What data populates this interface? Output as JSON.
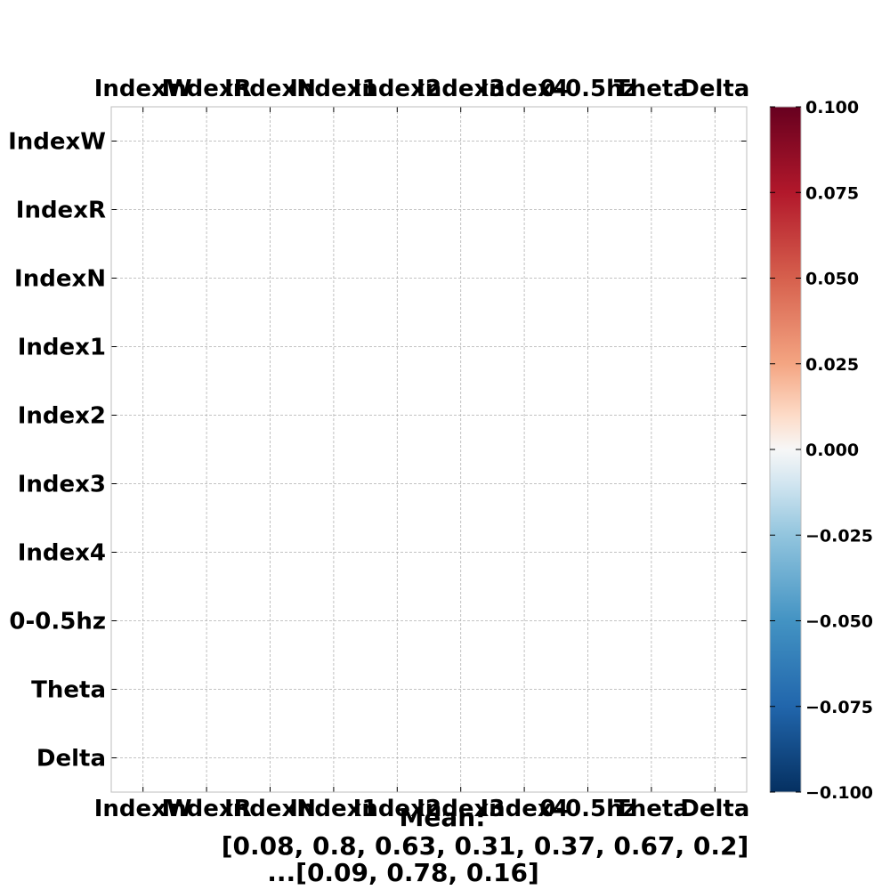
{
  "chart_data": {
    "type": "heatmap",
    "x_categories": [
      "IndexW",
      "IndexR",
      "IndexN",
      "Index1",
      "Index2",
      "Index3",
      "Index4",
      "0-0.5hz",
      "Theta",
      "Delta"
    ],
    "y_categories": [
      "IndexW",
      "IndexR",
      "IndexN",
      "Index1",
      "Index2",
      "Index3",
      "Index4",
      "0-0.5hz",
      "Theta",
      "Delta"
    ],
    "values": null,
    "colormap": "RdBu_r",
    "vmin": -0.1,
    "vmax": 0.1,
    "colorbar_ticks": [
      "0.100",
      "0.075",
      "0.050",
      "0.025",
      "0.000",
      "−0.025",
      "−0.050",
      "−0.075",
      "−0.100"
    ],
    "colorbar_tick_values": [
      0.1,
      0.075,
      0.05,
      0.025,
      0.0,
      -0.025,
      -0.05,
      -0.075,
      -0.1
    ],
    "caption_lines": [
      "Mean:",
      "[0.08, 0.8, 0.63, 0.31, 0.37, 0.67, 0.2]",
      "...[0.09, 0.78, 0.16]"
    ],
    "grid": true,
    "x_tick_positions": "top-and-bottom",
    "colorbar": "right"
  }
}
